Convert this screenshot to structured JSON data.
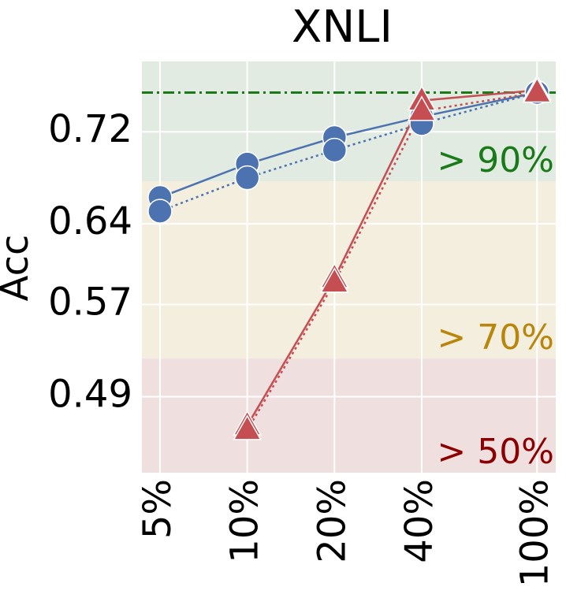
{
  "chart_data": {
    "type": "line",
    "title": "XNLI",
    "ylabel": "Acc",
    "x": [
      5,
      10,
      20,
      40,
      100
    ],
    "xscale": "log",
    "xlim": [
      4.33,
      116
    ],
    "xticks": [
      {
        "value": 5,
        "label": "5%"
      },
      {
        "value": 10,
        "label": "10%"
      },
      {
        "value": 20,
        "label": "20%"
      },
      {
        "value": 40,
        "label": "40%"
      },
      {
        "value": 100,
        "label": "100%"
      }
    ],
    "ylim": [
      0.424,
      0.781
    ],
    "yticks": [
      0.49,
      0.57,
      0.64,
      0.72
    ],
    "grid": true,
    "reference_line": {
      "value": 0.754,
      "color": "#1a7a1a"
    },
    "bands": [
      {
        "label": "> 90%",
        "lower": 0.677,
        "color": "#e1ebe1",
        "text_color": "#1a7a1a"
      },
      {
        "label": "> 70%",
        "lower": 0.523,
        "color": "#f4eedf",
        "text_color": "#b8860b"
      },
      {
        "label": "> 50%",
        "lower": 0.424,
        "color": "#f0dfdf",
        "text_color": "#8b0000"
      }
    ],
    "series": [
      {
        "color": "#4c72b0",
        "marker": "circle",
        "linestyle": "solid",
        "values": [
          0.663,
          0.692,
          0.715,
          0.733,
          0.754
        ]
      },
      {
        "color": "#4c72b0",
        "marker": "circle",
        "linestyle": "dotted",
        "values": [
          0.651,
          0.68,
          0.704,
          0.727,
          0.754
        ]
      },
      {
        "color": "#c44e52",
        "marker": "triangle",
        "linestyle": "solid",
        "values": [
          null,
          0.465,
          0.593,
          0.747,
          0.756
        ]
      },
      {
        "color": "#c44e52",
        "marker": "triangle",
        "linestyle": "dotted",
        "values": [
          null,
          0.461,
          0.589,
          0.738,
          0.754
        ]
      }
    ]
  }
}
